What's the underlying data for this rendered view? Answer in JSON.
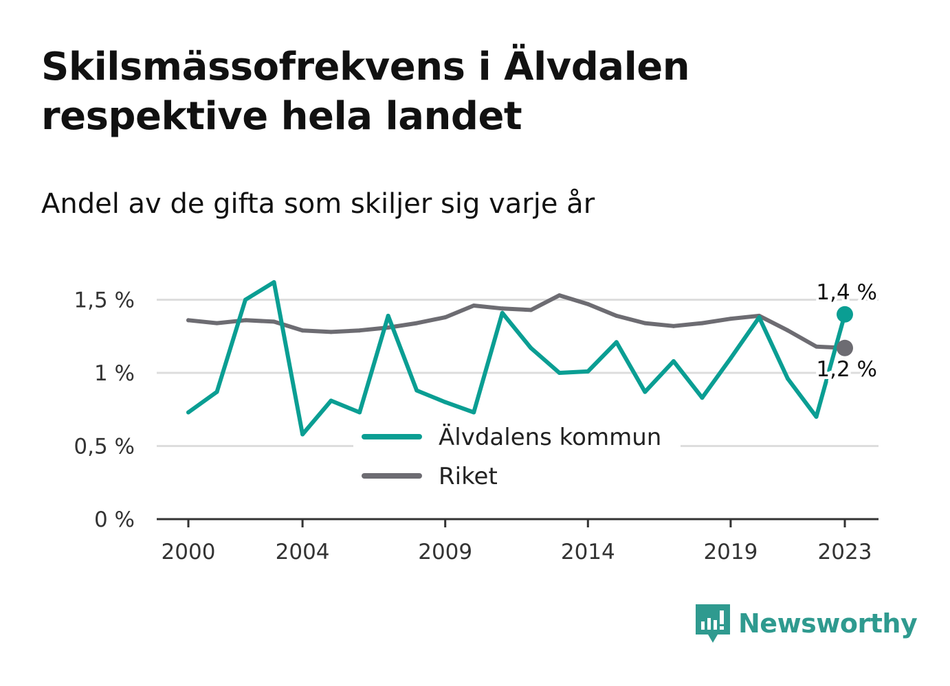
{
  "header": {
    "title_line1": "Skilsmässofrekvens i Älvdalen",
    "title_line2": "respektive hela landet",
    "subtitle": "Andel av de gifta som skiljer sig varje år"
  },
  "brand": {
    "name": "Newsworthy",
    "icon": "newsworthy-logo-icon",
    "color": "#2f9a8f"
  },
  "colors": {
    "alvdalen": "#0a9e93",
    "riket": "#6d6c72",
    "grid": "#dddddd",
    "axis": "#333333"
  },
  "chart_data": {
    "type": "line",
    "title": "Skilsmässofrekvens i Älvdalen respektive hela landet",
    "subtitle": "Andel av de gifta som skiljer sig varje år",
    "x": [
      2000,
      2001,
      2002,
      2003,
      2004,
      2005,
      2006,
      2007,
      2008,
      2009,
      2010,
      2011,
      2012,
      2013,
      2014,
      2015,
      2016,
      2017,
      2018,
      2019,
      2020,
      2021,
      2022,
      2023
    ],
    "x_ticks": [
      "2000",
      "2004",
      "2009",
      "2014",
      "2019",
      "2023"
    ],
    "y_ticks": [
      "0 %",
      "0,5 %",
      "1 %",
      "1,5 %"
    ],
    "y_tick_values": [
      0,
      0.5,
      1,
      1.5
    ],
    "ylim": [
      0,
      1.7
    ],
    "grid": true,
    "legend_placement": "bottom-center",
    "series": [
      {
        "name": "Älvdalens kommun",
        "color": "#0a9e93",
        "values": [
          0.73,
          0.87,
          1.5,
          1.62,
          0.58,
          0.81,
          0.73,
          1.39,
          0.88,
          0.8,
          0.73,
          1.41,
          1.17,
          1.0,
          1.01,
          1.21,
          0.87,
          1.08,
          0.83,
          1.1,
          1.38,
          0.96,
          0.7,
          1.4
        ],
        "end_label": "1,4 %"
      },
      {
        "name": "Riket",
        "color": "#6d6c72",
        "values": [
          1.36,
          1.34,
          1.36,
          1.35,
          1.29,
          1.28,
          1.29,
          1.31,
          1.34,
          1.38,
          1.46,
          1.44,
          1.43,
          1.53,
          1.47,
          1.39,
          1.34,
          1.32,
          1.34,
          1.37,
          1.39,
          1.29,
          1.18,
          1.17
        ],
        "end_label": "1,2 %"
      }
    ]
  }
}
